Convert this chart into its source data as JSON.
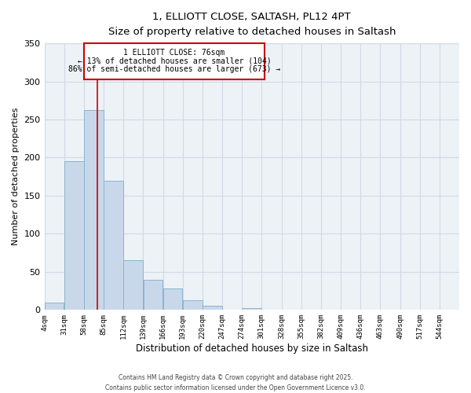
{
  "title_line1": "1, ELLIOTT CLOSE, SALTASH, PL12 4PT",
  "title_line2": "Size of property relative to detached houses in Saltash",
  "xlabel": "Distribution of detached houses by size in Saltash",
  "ylabel": "Number of detached properties",
  "bar_left_edges": [
    4,
    31,
    58,
    85,
    112,
    139,
    166,
    193,
    220,
    247,
    274,
    301,
    328,
    355,
    382,
    409,
    436,
    463,
    490,
    517
  ],
  "bar_heights": [
    10,
    195,
    262,
    170,
    65,
    40,
    28,
    13,
    5,
    0,
    2,
    0,
    0,
    0,
    0,
    0,
    0,
    0,
    0,
    0
  ],
  "bin_width": 27,
  "bar_color": "#c8d8ea",
  "bar_edge_color": "#8ab4cc",
  "x_tick_labels": [
    "4sqm",
    "31sqm",
    "58sqm",
    "85sqm",
    "112sqm",
    "139sqm",
    "166sqm",
    "193sqm",
    "220sqm",
    "247sqm",
    "274sqm",
    "301sqm",
    "328sqm",
    "355sqm",
    "382sqm",
    "409sqm",
    "436sqm",
    "463sqm",
    "490sqm",
    "517sqm",
    "544sqm"
  ],
  "x_tick_positions": [
    4,
    31,
    58,
    85,
    112,
    139,
    166,
    193,
    220,
    247,
    274,
    301,
    328,
    355,
    382,
    409,
    436,
    463,
    490,
    517,
    544
  ],
  "ylim": [
    0,
    350
  ],
  "xlim": [
    4,
    571
  ],
  "property_line_x": 76,
  "property_line_color": "#cc0000",
  "annotation_line1": "1 ELLIOTT CLOSE: 76sqm",
  "annotation_line2": "← 13% of detached houses are smaller (104)",
  "annotation_line3": "86% of semi-detached houses are larger (673) →",
  "grid_color": "#d0dae4",
  "bg_color": "#edf2f7",
  "footer_line1": "Contains HM Land Registry data © Crown copyright and database right 2025.",
  "footer_line2": "Contains public sector information licensed under the Open Government Licence v3.0.",
  "yticks": [
    0,
    50,
    100,
    150,
    200,
    250,
    300,
    350
  ]
}
